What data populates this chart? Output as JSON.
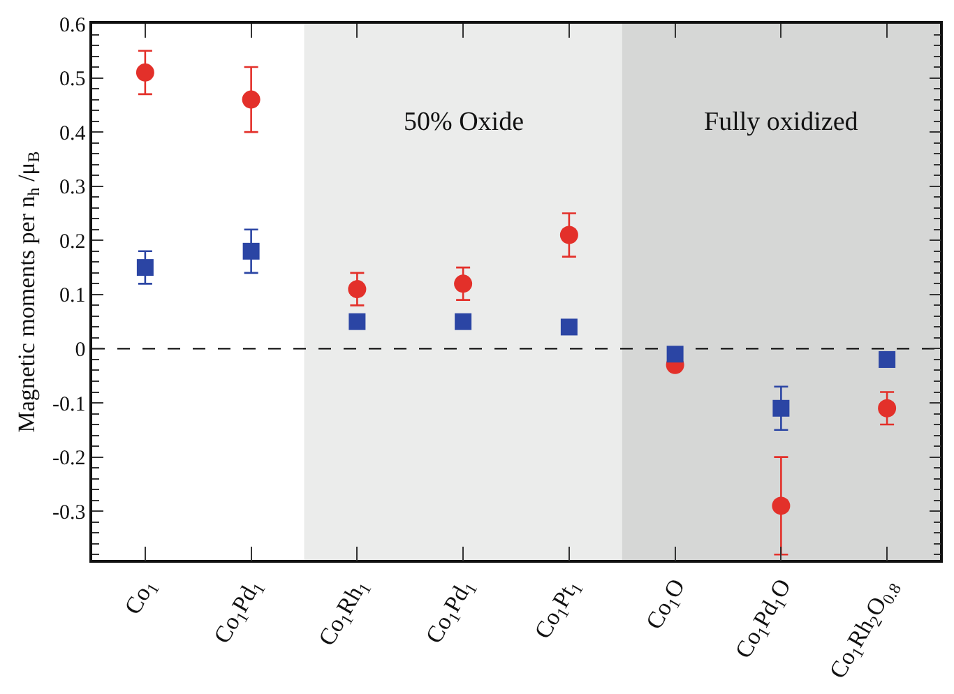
{
  "chart_data": {
    "type": "scatter",
    "ylabel": "Magnetic moments per n$_{h}$ /μ$_{B}$",
    "categories": [
      "Co$_{1}$",
      "Co$_{1}$Pd$_{1}$",
      "Co$_{1}$Rh$_{1}$",
      "Co$_{1}$Pd$_{1}$",
      "Co$_{1}$Pt$_{1}$",
      "Co$_{1}$O",
      "Co$_{1}$Pd$_{1}$O",
      "Co$_{1}$Rh$_{2}$O$_{0.8}$"
    ],
    "series": [
      {
        "color": "#e3302a",
        "marker": "circle",
        "values": [
          0.51,
          0.46,
          0.11,
          0.12,
          0.21,
          -0.03,
          -0.29,
          -0.11
        ],
        "errors": [
          [
            0.47,
            0.55
          ],
          [
            0.4,
            0.52
          ],
          [
            0.08,
            0.14
          ],
          [
            0.09,
            0.15
          ],
          [
            0.17,
            0.25
          ],
          null,
          [
            -0.38,
            -0.2
          ],
          [
            -0.14,
            -0.08
          ]
        ]
      },
      {
        "color": "#2b45a4",
        "marker": "square",
        "values": [
          0.15,
          0.18,
          0.05,
          0.05,
          0.04,
          -0.01,
          -0.11,
          -0.02
        ],
        "errors": [
          [
            0.12,
            0.18
          ],
          [
            0.14,
            0.22
          ],
          null,
          null,
          null,
          null,
          [
            -0.15,
            -0.07
          ],
          null
        ]
      }
    ],
    "ylim": [
      -0.39,
      0.6
    ],
    "yticks": [
      -0.3,
      -0.2,
      -0.1,
      0,
      0.1,
      0.2,
      0.3,
      0.4,
      0.5,
      0.6
    ],
    "ref_lines": [
      {
        "axis": "y",
        "value": 0,
        "line_style": "dashed",
        "color": "#000000"
      }
    ],
    "bands": [
      {
        "axis": "x",
        "from": "Co$_{1}$Rh$_{1}$",
        "to": "Co$_{1}$Pt$_{1}$",
        "label": "50% Oxide",
        "color": "#ebeceb"
      },
      {
        "axis": "x",
        "from": "Co$_{1}$O",
        "to": "Co$_{1}$Rh$_{2}$O$_{0.8}$",
        "label": "Fully oxidized",
        "color": "#d6d7d6"
      }
    ]
  }
}
